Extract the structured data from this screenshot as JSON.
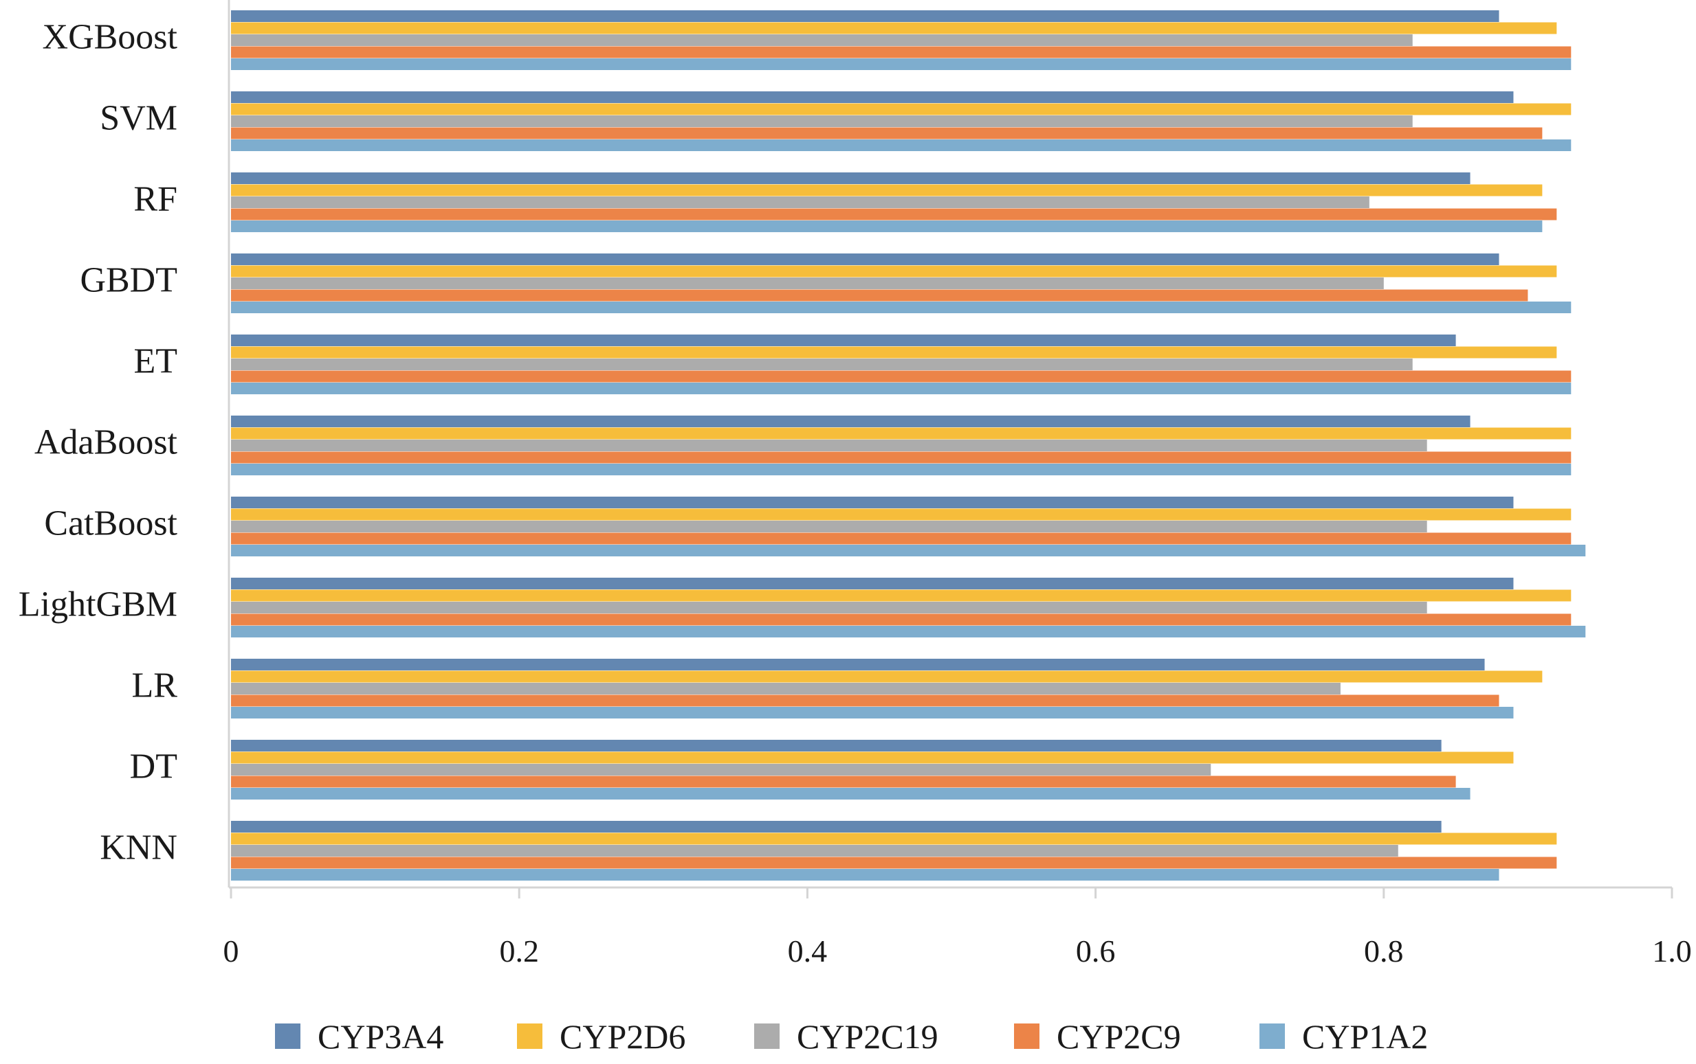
{
  "chart_data": {
    "type": "bar",
    "orientation": "horizontal",
    "categories": [
      "XGBoost",
      "SVM",
      "RF",
      "GBDT",
      "ET",
      "AdaBoost",
      "CatBoost",
      "LightGBM",
      "LR",
      "DT",
      "KNN"
    ],
    "series": [
      {
        "name": "CYP3A4",
        "color": "#6387B1",
        "values": [
          0.88,
          0.89,
          0.86,
          0.88,
          0.85,
          0.86,
          0.89,
          0.89,
          0.87,
          0.84,
          0.84
        ]
      },
      {
        "name": "CYP2D6",
        "color": "#F6BD3B",
        "values": [
          0.92,
          0.93,
          0.91,
          0.92,
          0.92,
          0.93,
          0.93,
          0.93,
          0.91,
          0.89,
          0.92
        ]
      },
      {
        "name": "CYP2C19",
        "color": "#ACACAC",
        "values": [
          0.82,
          0.82,
          0.79,
          0.8,
          0.82,
          0.83,
          0.83,
          0.83,
          0.77,
          0.68,
          0.81
        ]
      },
      {
        "name": "CYP2C9",
        "color": "#EC8448",
        "values": [
          0.93,
          0.91,
          0.92,
          0.9,
          0.93,
          0.93,
          0.93,
          0.93,
          0.88,
          0.85,
          0.92
        ]
      },
      {
        "name": "CYP1A2",
        "color": "#7EADCE",
        "values": [
          0.93,
          0.93,
          0.91,
          0.93,
          0.93,
          0.93,
          0.94,
          0.94,
          0.89,
          0.86,
          0.88
        ]
      }
    ],
    "xlim": [
      0,
      1.0
    ],
    "xticks": [
      0,
      0.2,
      0.4,
      0.6,
      0.8,
      1.0
    ],
    "xtick_labels": [
      "0",
      "0.2",
      "0.4",
      "0.6",
      "0.8",
      "1.0"
    ],
    "title": "",
    "xlabel": "",
    "ylabel": "",
    "grid": false,
    "legend_position": "bottom"
  }
}
